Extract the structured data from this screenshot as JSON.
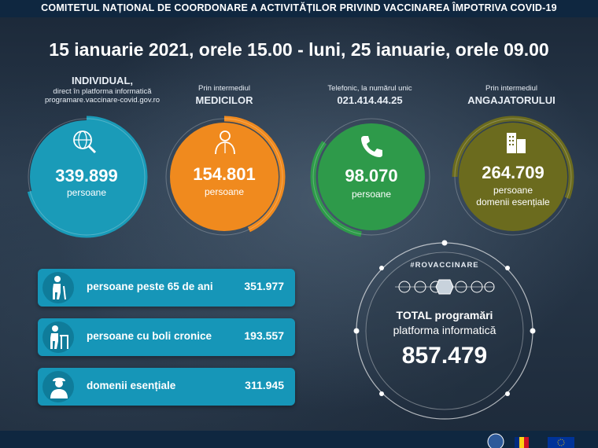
{
  "header": {
    "title": "COMITETUL NAȚIONAL DE COORDONARE A ACTIVITĂȚILOR PRIVIND VACCINAREA ÎMPOTRIVA COVID-19"
  },
  "period": "15 ianuarie 2021, orele 15.00 - luni, 25 ianuarie, orele 09.00",
  "channels": [
    {
      "top_bold": "INDIVIDUAL,",
      "line1": "direct în platforma informatică",
      "line2": "programare.vaccinare-covid.gov.ro",
      "value": "339.899",
      "unit": "persoane",
      "icon": "globe-search-icon",
      "color": "#1a9bb8"
    },
    {
      "top_small": "Prin intermediul",
      "top_bold": "MEDICILOR",
      "value": "154.801",
      "unit": "persoane",
      "icon": "doctor-icon",
      "color": "#f08a1e"
    },
    {
      "top_small": "Telefonic, la numărul unic",
      "top_bold": "021.414.44.25",
      "value": "98.070",
      "unit": "persoane",
      "icon": "phone-icon",
      "color": "#2e9a4a"
    },
    {
      "top_small": "Prin intermediul",
      "top_bold": "ANGAJATORULUI",
      "value": "264.709",
      "unit": "persoane",
      "unit2": "domenii esențiale",
      "icon": "building-icon",
      "color": "#6b6b1e"
    }
  ],
  "stats": [
    {
      "label": "persoane peste 65 de ani",
      "value": "351.977",
      "icon": "elderly-icon"
    },
    {
      "label": "persoane cu boli cronice",
      "value": "193.557",
      "icon": "walker-icon"
    },
    {
      "label": "domenii esențiale",
      "value": "311.945",
      "icon": "worker-icon"
    }
  ],
  "total": {
    "hashtag": "#ROVACCINARE",
    "line1": "TOTAL programări",
    "line2": "platforma informatică",
    "value": "857.479"
  }
}
